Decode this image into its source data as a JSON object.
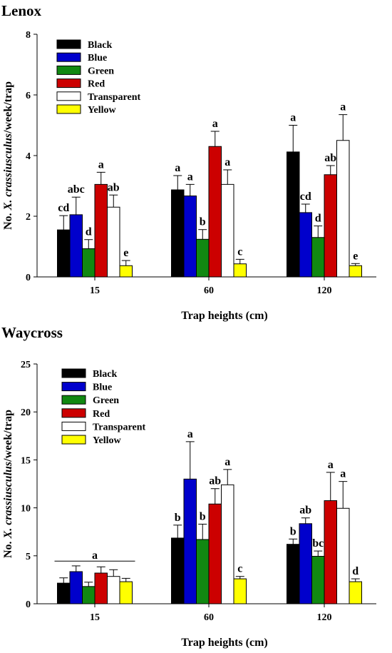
{
  "chart_data": [
    {
      "type": "bar",
      "title": "Lenox",
      "xlabel": "Trap heights (cm)",
      "ylabel_prefix": "No. ",
      "ylabel_species": "X. crassiusculus",
      "ylabel_suffix": "/week/trap",
      "ylim": [
        0,
        8
      ],
      "yticks": [
        0,
        2,
        4,
        6,
        8
      ],
      "categories": [
        "15",
        "60",
        "120"
      ],
      "legend_position": "top-left",
      "series": [
        {
          "name": "Black",
          "color": "#000000",
          "values": [
            1.55,
            2.87,
            4.12
          ],
          "errors": [
            0.47,
            0.47,
            0.88
          ],
          "letters": [
            "cd",
            "a",
            "a"
          ]
        },
        {
          "name": "Blue",
          "color": "#0000cc",
          "values": [
            2.05,
            2.67,
            2.12
          ],
          "errors": [
            0.58,
            0.38,
            0.28
          ],
          "letters": [
            "abc",
            "a",
            "cd"
          ]
        },
        {
          "name": "Green",
          "color": "#118811",
          "values": [
            0.93,
            1.24,
            1.3
          ],
          "errors": [
            0.3,
            0.32,
            0.38
          ],
          "letters": [
            "d",
            "b",
            "d"
          ]
        },
        {
          "name": "Red",
          "color": "#cc0000",
          "values": [
            3.05,
            4.3,
            3.37
          ],
          "errors": [
            0.4,
            0.5,
            0.3
          ],
          "letters": [
            "a",
            "a",
            "ab"
          ]
        },
        {
          "name": "Transparent",
          "color": "#ffffff",
          "values": [
            2.3,
            3.05,
            4.5
          ],
          "errors": [
            0.4,
            0.48,
            0.85
          ],
          "letters": [
            "ab",
            "a",
            "a"
          ]
        },
        {
          "name": "Yellow",
          "color": "#ffff00",
          "values": [
            0.37,
            0.43,
            0.37
          ],
          "errors": [
            0.17,
            0.15,
            0.07
          ],
          "letters": [
            "e",
            "c",
            "e"
          ]
        }
      ]
    },
    {
      "type": "bar",
      "title": "Waycross",
      "xlabel": "Trap heights (cm)",
      "ylabel_prefix": "No. ",
      "ylabel_species": "X. crassiusculus",
      "ylabel_suffix": "/week/trap",
      "ylim": [
        0,
        25
      ],
      "yticks": [
        0,
        5,
        10,
        15,
        20,
        25
      ],
      "categories": [
        "15",
        "60",
        "120"
      ],
      "legend_position": "top-left",
      "group_annotation": {
        "category": "15",
        "letter": "a",
        "y": 4.45
      },
      "series": [
        {
          "name": "Black",
          "color": "#000000",
          "values": [
            2.15,
            6.85,
            6.2
          ],
          "errors": [
            0.55,
            1.35,
            0.55
          ],
          "letters": [
            "",
            "b",
            "b"
          ]
        },
        {
          "name": "Blue",
          "color": "#0000cc",
          "values": [
            3.35,
            13.0,
            8.35
          ],
          "errors": [
            0.6,
            3.9,
            0.6
          ],
          "letters": [
            "",
            "a",
            "ab"
          ]
        },
        {
          "name": "Green",
          "color": "#118811",
          "values": [
            1.8,
            6.7,
            4.95
          ],
          "errors": [
            0.45,
            1.6,
            0.55
          ],
          "letters": [
            "",
            "b",
            "bc"
          ]
        },
        {
          "name": "Red",
          "color": "#cc0000",
          "values": [
            3.2,
            10.4,
            10.75
          ],
          "errors": [
            0.65,
            1.6,
            2.95
          ],
          "letters": [
            "",
            "ab",
            "a"
          ]
        },
        {
          "name": "Transparent",
          "color": "#ffffff",
          "values": [
            2.85,
            12.4,
            9.95
          ],
          "errors": [
            0.7,
            1.6,
            2.8
          ],
          "letters": [
            "",
            "a",
            "a"
          ]
        },
        {
          "name": "Yellow",
          "color": "#ffff00",
          "values": [
            2.3,
            2.6,
            2.3
          ],
          "errors": [
            0.35,
            0.25,
            0.3
          ],
          "letters": [
            "",
            "c",
            "d"
          ]
        }
      ]
    }
  ]
}
